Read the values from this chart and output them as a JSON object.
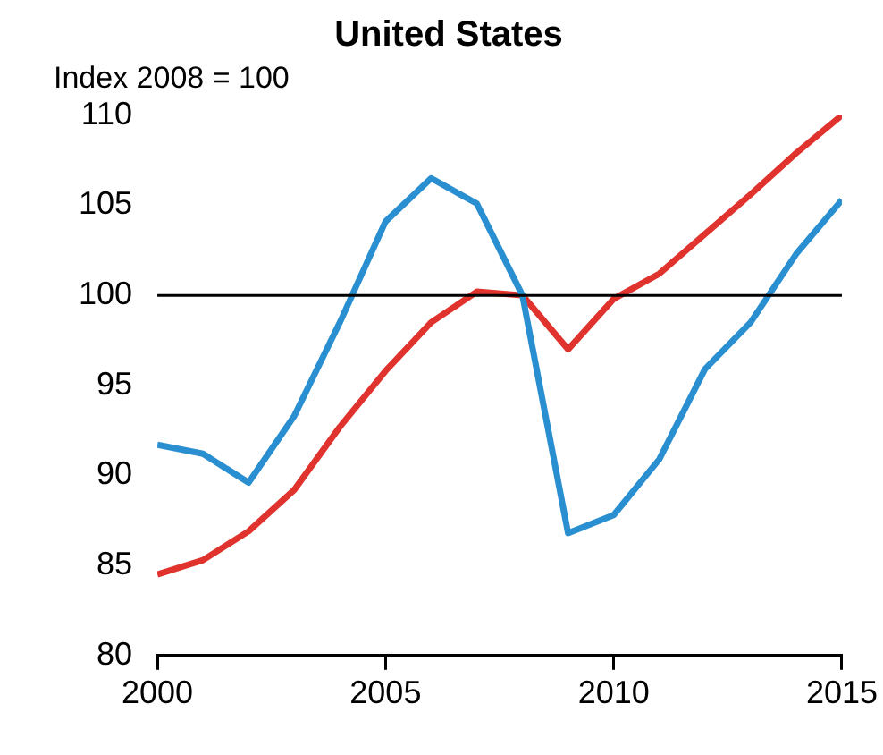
{
  "chart_data": {
    "type": "line",
    "title": "United States",
    "ylabel": "Index 2008 = 100",
    "x": [
      2000,
      2001,
      2002,
      2003,
      2004,
      2005,
      2006,
      2007,
      2008,
      2009,
      2010,
      2011,
      2012,
      2013,
      2014,
      2015
    ],
    "series": [
      {
        "color": "#2a8fd0",
        "values": [
          91.7,
          91.2,
          89.6,
          93.3,
          98.5,
          104.1,
          106.5,
          105.1,
          100.0,
          86.8,
          87.8,
          90.9,
          95.9,
          98.5,
          102.3,
          105.3
        ]
      },
      {
        "color": "#e0332e",
        "values": [
          84.5,
          85.3,
          86.9,
          89.2,
          92.7,
          95.8,
          98.5,
          100.2,
          100.0,
          97.0,
          99.8,
          101.2,
          103.4,
          105.6,
          107.9,
          110.0
        ]
      }
    ],
    "xlim": [
      2000,
      2015
    ],
    "xticks": [
      2000,
      2005,
      2010,
      2015
    ],
    "ylim": [
      80,
      110
    ],
    "yticks": [
      80,
      85,
      90,
      95,
      100,
      105,
      110
    ],
    "ref_lines": [
      {
        "axis": "y",
        "value": 100,
        "color": "#000000"
      }
    ],
    "grid": false,
    "legend": false,
    "marker": "none",
    "line_style": "solid"
  }
}
